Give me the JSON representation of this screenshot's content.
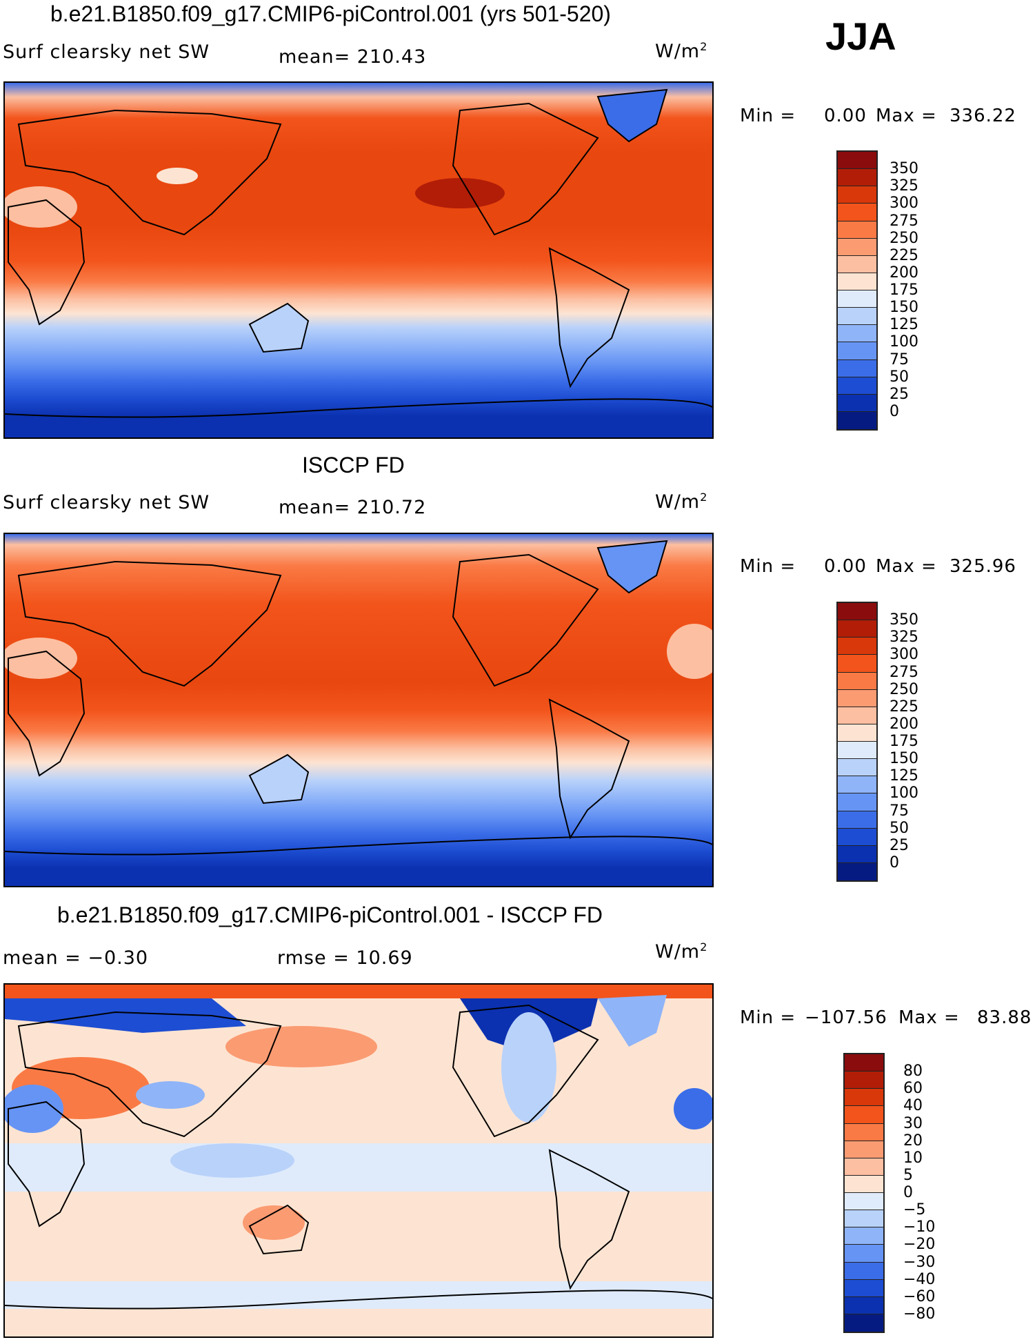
{
  "season": "JJA",
  "panels": [
    {
      "title": "b.e21.B1850.f09_g17.CMIP6-piControl.001 (yrs 501-520)",
      "variable": "Surf  clearsky  net  SW",
      "stat_text": "mean=  210.43",
      "units": "W/m",
      "units_sup": "2",
      "min_label": "Min  =",
      "min_value": "0.00",
      "max_label": "Max  =",
      "max_value": "336.22"
    },
    {
      "title": "ISCCP FD",
      "variable": "Surf  clearsky  net  SW",
      "stat_text": "mean=  210.72",
      "units": "W/m",
      "units_sup": "2",
      "min_label": "Min  =",
      "min_value": "0.00",
      "max_label": "Max  =",
      "max_value": "325.96"
    },
    {
      "title": "b.e21.B1850.f09_g17.CMIP6-piControl.001 - ISCCP FD",
      "variable": "mean  =    −0.30",
      "stat_text": "rmse  =    10.69",
      "units": "W/m",
      "units_sup": "2",
      "min_label": "Min  =",
      "min_value": "−107.56",
      "max_label": "Max  =",
      "max_value": "83.88"
    }
  ],
  "colorbars": {
    "absolute": {
      "labels": [
        "350",
        "325",
        "300",
        "275",
        "250",
        "225",
        "200",
        "175",
        "150",
        "125",
        "100",
        "75",
        "50",
        "25",
        "0"
      ],
      "colors": [
        "#8a0c0c",
        "#b21d07",
        "#d8380a",
        "#f2541b",
        "#fa7a45",
        "#fb9b72",
        "#fcbfa1",
        "#fde4d2",
        "#dfebfb",
        "#b9d2fa",
        "#8fb4f8",
        "#6694f4",
        "#3b6de8",
        "#1d4dd2",
        "#0b31b0",
        "#061b82"
      ]
    },
    "difference": {
      "labels": [
        "80",
        "60",
        "40",
        "30",
        "20",
        "10",
        "5",
        "0",
        "−5",
        "−10",
        "−20",
        "−30",
        "−40",
        "−60",
        "−80"
      ],
      "colors": [
        "#8a0c0c",
        "#b21d07",
        "#d8380a",
        "#f2541b",
        "#fa7a45",
        "#fb9b72",
        "#fcbfa1",
        "#fde4d2",
        "#dfebfb",
        "#b9d2fa",
        "#8fb4f8",
        "#6694f4",
        "#3b6de8",
        "#1d4dd2",
        "#0b31b0",
        "#061b82"
      ]
    }
  },
  "chart_data": [
    {
      "type": "heatmap",
      "title": "b.e21.B1850.f09_g17.CMIP6-piControl.001 (yrs 501-520)",
      "variable": "Surf clearsky net SW",
      "units": "W/m2",
      "mean": 210.43,
      "min": 0.0,
      "max": 336.22,
      "contour_levels": [
        0,
        25,
        50,
        75,
        100,
        125,
        150,
        175,
        200,
        225,
        250,
        275,
        300,
        325,
        350
      ],
      "projection": "cylindrical equidistant, Pacific-centered"
    },
    {
      "type": "heatmap",
      "title": "ISCCP FD",
      "variable": "Surf clearsky net SW",
      "units": "W/m2",
      "mean": 210.72,
      "min": 0.0,
      "max": 325.96,
      "contour_levels": [
        0,
        25,
        50,
        75,
        100,
        125,
        150,
        175,
        200,
        225,
        250,
        275,
        300,
        325,
        350
      ],
      "projection": "cylindrical equidistant, Pacific-centered"
    },
    {
      "type": "heatmap",
      "title": "b.e21.B1850.f09_g17.CMIP6-piControl.001 - ISCCP FD",
      "units": "W/m2",
      "mean": -0.3,
      "rmse": 10.69,
      "min": -107.56,
      "max": 83.88,
      "contour_levels": [
        -80,
        -60,
        -40,
        -30,
        -20,
        -10,
        -5,
        0,
        5,
        10,
        20,
        30,
        40,
        60,
        80
      ],
      "projection": "cylindrical equidistant, Pacific-centered"
    }
  ]
}
